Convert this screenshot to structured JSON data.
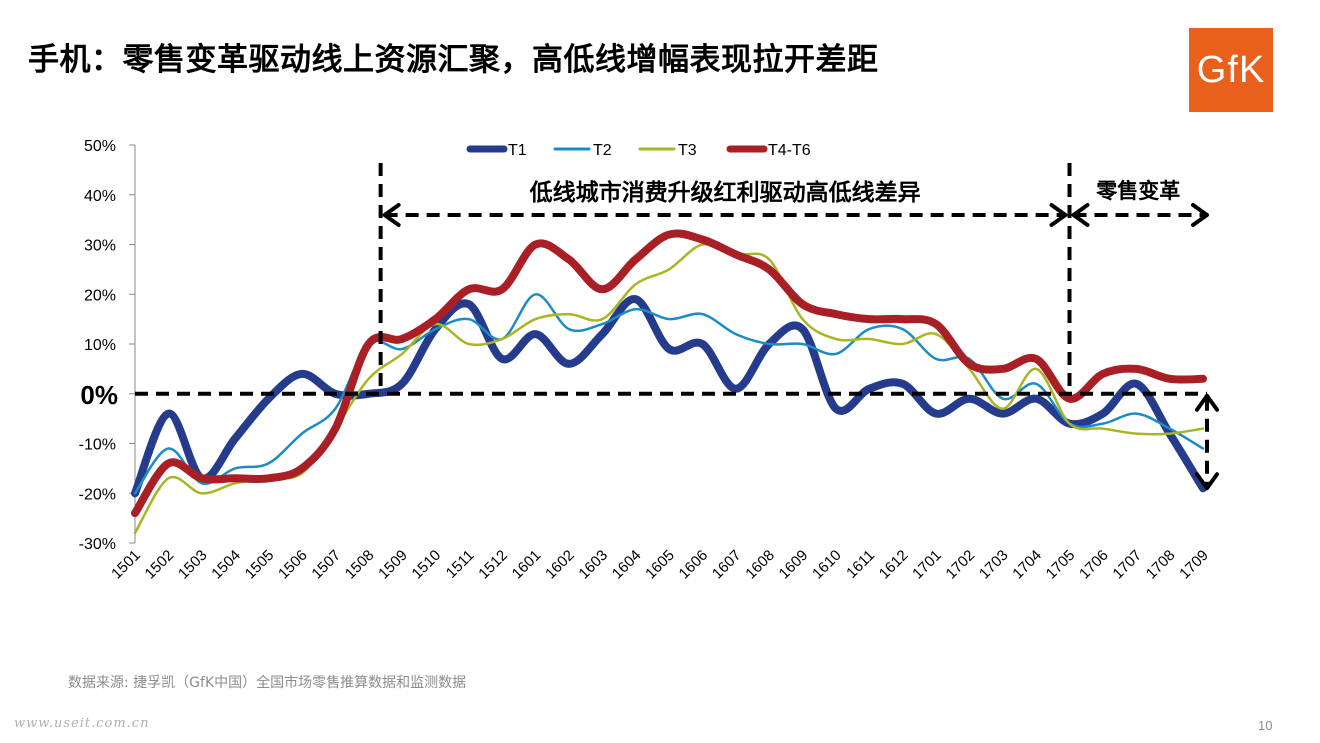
{
  "slide": {
    "title": "手机：零售变革驱动线上资源汇聚，高低线增幅表现拉开差距",
    "logo_text": "GfK",
    "source": "数据来源: 捷孚凯（GfK中国）全国市场零售推算数据和监测数据",
    "watermark": "www.useit.com.cn",
    "page_number": "10"
  },
  "chart_data": {
    "type": "line",
    "x": [
      "1501",
      "1502",
      "1503",
      "1504",
      "1505",
      "1506",
      "1507",
      "1508",
      "1509",
      "1510",
      "1511",
      "1512",
      "1601",
      "1602",
      "1603",
      "1604",
      "1605",
      "1606",
      "1607",
      "1608",
      "1609",
      "1610",
      "1611",
      "1612",
      "1701",
      "1702",
      "1703",
      "1704",
      "1705",
      "1706",
      "1707",
      "1708",
      "1709"
    ],
    "ylim": [
      -30,
      50
    ],
    "yticks": [
      "-30%",
      "-20%",
      "-10%",
      "0%",
      "10%",
      "20%",
      "30%",
      "40%",
      "50%"
    ],
    "yticks_values": [
      -30,
      -20,
      -10,
      0,
      10,
      20,
      30,
      40,
      50
    ],
    "series": [
      {
        "name": "T1",
        "color": "#253c8c",
        "width": 8,
        "values": [
          -20,
          -4,
          -17,
          -9,
          -1,
          4,
          0,
          0,
          2,
          13,
          18,
          7,
          12,
          6,
          12,
          19,
          9,
          10,
          1,
          10,
          13,
          -3,
          1,
          2,
          -4,
          -1,
          -4,
          -1,
          -6,
          -4,
          2,
          -8,
          -19
        ]
      },
      {
        "name": "T2",
        "color": "#1c8cc4",
        "width": 2.5,
        "values": [
          -20,
          -11,
          -18,
          -15,
          -14,
          -8,
          -3,
          10,
          9,
          13,
          15,
          11,
          20,
          13,
          14,
          17,
          15,
          16,
          12,
          10,
          10,
          8,
          13,
          13,
          7,
          7,
          -1,
          2,
          -6,
          -6,
          -4,
          -7,
          -11
        ]
      },
      {
        "name": "T3",
        "color": "#a9b522",
        "width": 2.5,
        "values": [
          -28,
          -17,
          -20,
          -18,
          -17,
          -16,
          -7,
          3,
          8,
          14,
          10,
          11,
          15,
          16,
          15,
          22,
          25,
          30,
          28,
          27,
          15,
          11,
          11,
          10,
          12,
          5,
          -3,
          5,
          -6,
          -7,
          -8,
          -8,
          -7
        ]
      },
      {
        "name": "T4-T6",
        "color": "#a91f26",
        "width": 8,
        "values": [
          -24,
          -14,
          -17,
          -17,
          -17,
          -15,
          -7,
          10,
          11,
          15,
          21,
          21,
          30,
          27,
          21,
          27,
          32,
          31,
          28,
          25,
          18,
          16,
          15,
          15,
          14,
          6,
          5,
          7,
          -1,
          4,
          5,
          3,
          3
        ]
      }
    ],
    "annotations": {
      "zero_label": "0%",
      "period1_label": "低线城市消费升级红利驱动高低线差异",
      "period2_label": "零售变革"
    }
  }
}
